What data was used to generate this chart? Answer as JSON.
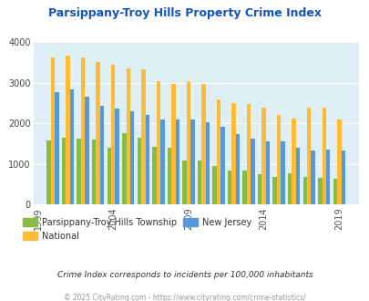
{
  "title": "Parsippany-Troy Hills Property Crime Index",
  "bar_years": [
    2000,
    2001,
    2002,
    2003,
    2004,
    2005,
    2006,
    2007,
    2008,
    2009,
    2010,
    2011,
    2012,
    2013,
    2014,
    2015,
    2016,
    2017,
    2018,
    2019
  ],
  "parsippany_vals": [
    1580,
    1640,
    1620,
    1600,
    1390,
    1760,
    1650,
    1430,
    1390,
    1090,
    1080,
    950,
    830,
    830,
    750,
    680,
    770,
    680,
    670,
    640
  ],
  "national_vals": [
    3620,
    3660,
    3630,
    3510,
    3440,
    3350,
    3320,
    3050,
    2970,
    3050,
    2970,
    2590,
    2490,
    2470,
    2380,
    2200,
    2110,
    2380,
    2380,
    2100
  ],
  "newjersey_vals": [
    2780,
    2840,
    2650,
    2440,
    2360,
    2290,
    2210,
    2090,
    2090,
    2100,
    2040,
    1920,
    1730,
    1620,
    1550,
    1560,
    1400,
    1330,
    1350,
    1340
  ],
  "parsippany_color": "#88bb44",
  "national_color": "#ffbb33",
  "newjersey_color": "#5599dd",
  "plot_bg": "#ddeef5",
  "ylim": [
    0,
    4000
  ],
  "yticks": [
    0,
    1000,
    2000,
    3000,
    4000
  ],
  "xtick_labels": [
    "1999",
    "2004",
    "2009",
    "2014",
    "2019"
  ],
  "xtick_positions": [
    1999,
    2004,
    2009,
    2014,
    2019
  ],
  "xlim": [
    1998.7,
    2020.3
  ],
  "title_color": "#1155bb",
  "subtitle": "Crime Index corresponds to incidents per 100,000 inhabitants",
  "footer": "© 2025 CityRating.com - https://www.cityrating.com/crime-statistics/",
  "legend_labels": [
    "Parsippany-Troy Hills Township",
    "National",
    "New Jersey"
  ],
  "bar_width": 0.27
}
